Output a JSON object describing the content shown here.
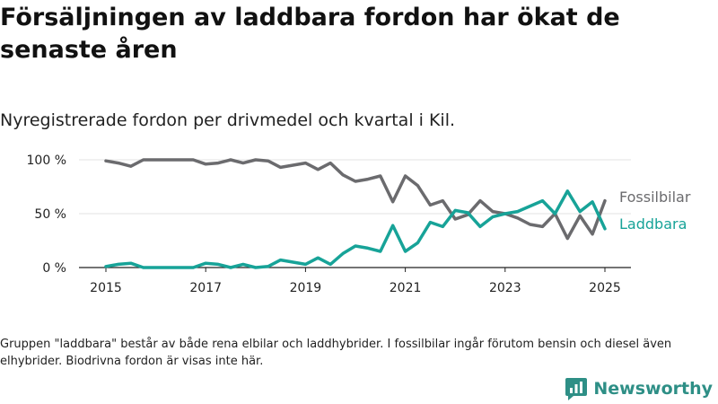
{
  "title": "Försäljningen av laddbara fordon har ökat de senaste åren",
  "subtitle": "Nyregistrerade fordon per drivmedel och kvartal i Kil.",
  "footnote": "Gruppen \"laddbara\" består av både rena elbilar och laddhybrider. I fossilbilar ingår förutom bensin och diesel även elhybrider. Biodrivna fordon är visas inte här.",
  "brand": {
    "name": "Newsworthy",
    "icon": "newsworthy-logo-icon",
    "color": "#2e8f86"
  },
  "chart_data": {
    "type": "line",
    "x_start": "2015 Q1",
    "x_ticks": [
      "2015",
      "2017",
      "2019",
      "2021",
      "2023",
      "2025"
    ],
    "y_ticks": [
      "0 %",
      "50 %",
      "100 %"
    ],
    "ylim": [
      0,
      100
    ],
    "grid": true,
    "legend": "right, at line ends",
    "series": [
      {
        "name": "Fossilbilar",
        "color": "#6b6b6e",
        "values": [
          99,
          97,
          94,
          100,
          100,
          100,
          100,
          100,
          96,
          97,
          100,
          97,
          100,
          99,
          93,
          95,
          97,
          91,
          97,
          86,
          80,
          82,
          85,
          61,
          85,
          76,
          58,
          62,
          45,
          49,
          62,
          52,
          50,
          46,
          40,
          38,
          50,
          27,
          48,
          31,
          62
        ]
      },
      {
        "name": "Laddbara",
        "color": "#17a398",
        "values": [
          1,
          3,
          4,
          0,
          0,
          0,
          0,
          0,
          4,
          3,
          0,
          3,
          0,
          1,
          7,
          5,
          3,
          9,
          3,
          13,
          20,
          18,
          15,
          39,
          15,
          23,
          42,
          38,
          53,
          51,
          38,
          47,
          50,
          52,
          57,
          62,
          50,
          71,
          52,
          61,
          36
        ]
      }
    ]
  }
}
